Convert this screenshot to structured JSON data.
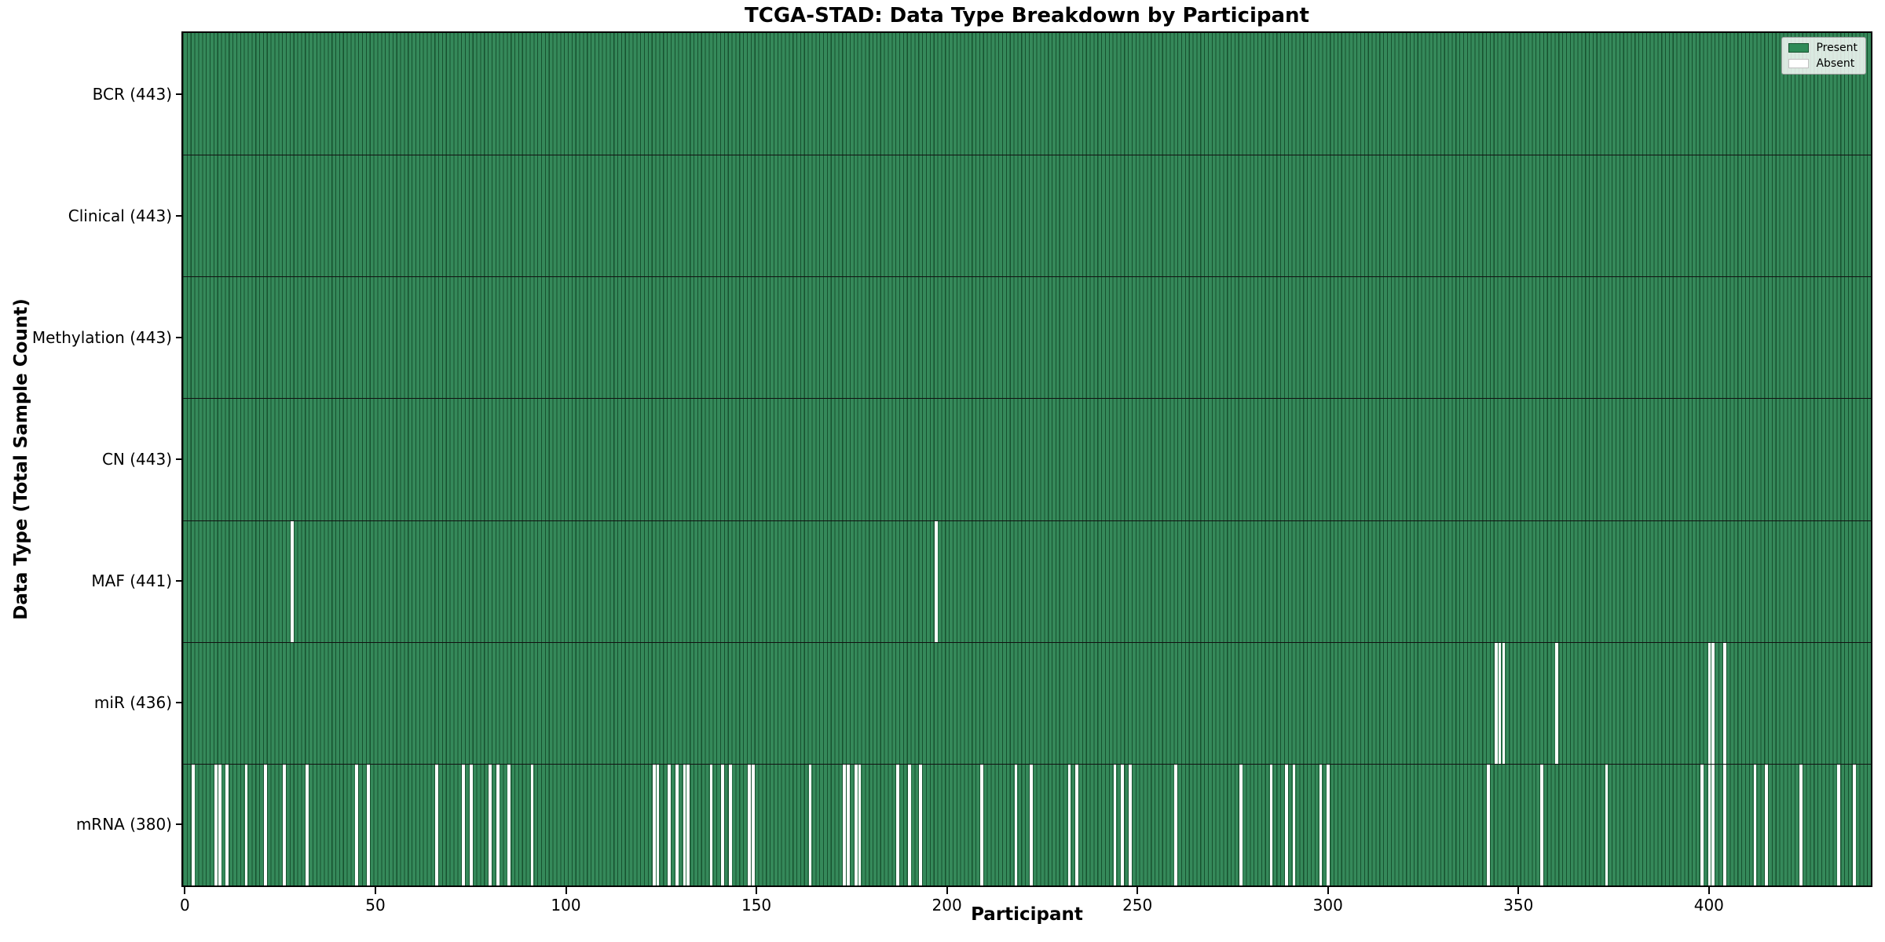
{
  "chart_data": {
    "type": "heatmap",
    "title": "TCGA-STAD: Data Type Breakdown by Participant",
    "xlabel": "Participant",
    "ylabel": "Data Type (Total Sample Count)",
    "n_participants": 443,
    "x_ticks": [
      0,
      50,
      100,
      150,
      200,
      250,
      300,
      350,
      400
    ],
    "grid": false,
    "legend": {
      "position": "upper-right",
      "entries": [
        {
          "label": "Present",
          "color": "#2e8b57"
        },
        {
          "label": "Absent",
          "color": "#ffffff"
        }
      ]
    },
    "colors": {
      "present_fill": "#35895a",
      "bar_edge": "#17512f",
      "absent": "#ffffff",
      "row_boundary": "#111111",
      "axis": "#000000"
    },
    "rows": [
      {
        "label": "BCR (443)",
        "name": "BCR",
        "count": 443,
        "absent": []
      },
      {
        "label": "Clinical (443)",
        "name": "Clinical",
        "count": 443,
        "absent": []
      },
      {
        "label": "Methylation (443)",
        "name": "Methylation",
        "count": 443,
        "absent": []
      },
      {
        "label": "CN (443)",
        "name": "CN",
        "count": 443,
        "absent": []
      },
      {
        "label": "MAF (441)",
        "name": "MAF",
        "count": 441,
        "absent": [
          28,
          197
        ]
      },
      {
        "label": "miR (436)",
        "name": "miR",
        "count": 436,
        "absent": [
          344,
          345,
          346,
          360,
          400,
          401,
          404
        ]
      },
      {
        "label": "mRNA (380)",
        "name": "mRNA",
        "count": 380,
        "absent": [
          2,
          8,
          9,
          11,
          16,
          21,
          26,
          32,
          45,
          48,
          66,
          73,
          75,
          80,
          82,
          85,
          91,
          123,
          124,
          127,
          129,
          131,
          132,
          138,
          141,
          143,
          148,
          149,
          164,
          173,
          174,
          176,
          177,
          187,
          190,
          193,
          209,
          218,
          222,
          232,
          234,
          244,
          246,
          248,
          260,
          277,
          285,
          289,
          291,
          298,
          300,
          342,
          356,
          373,
          398,
          400,
          401,
          404,
          412,
          415,
          424,
          434,
          438
        ]
      }
    ]
  }
}
